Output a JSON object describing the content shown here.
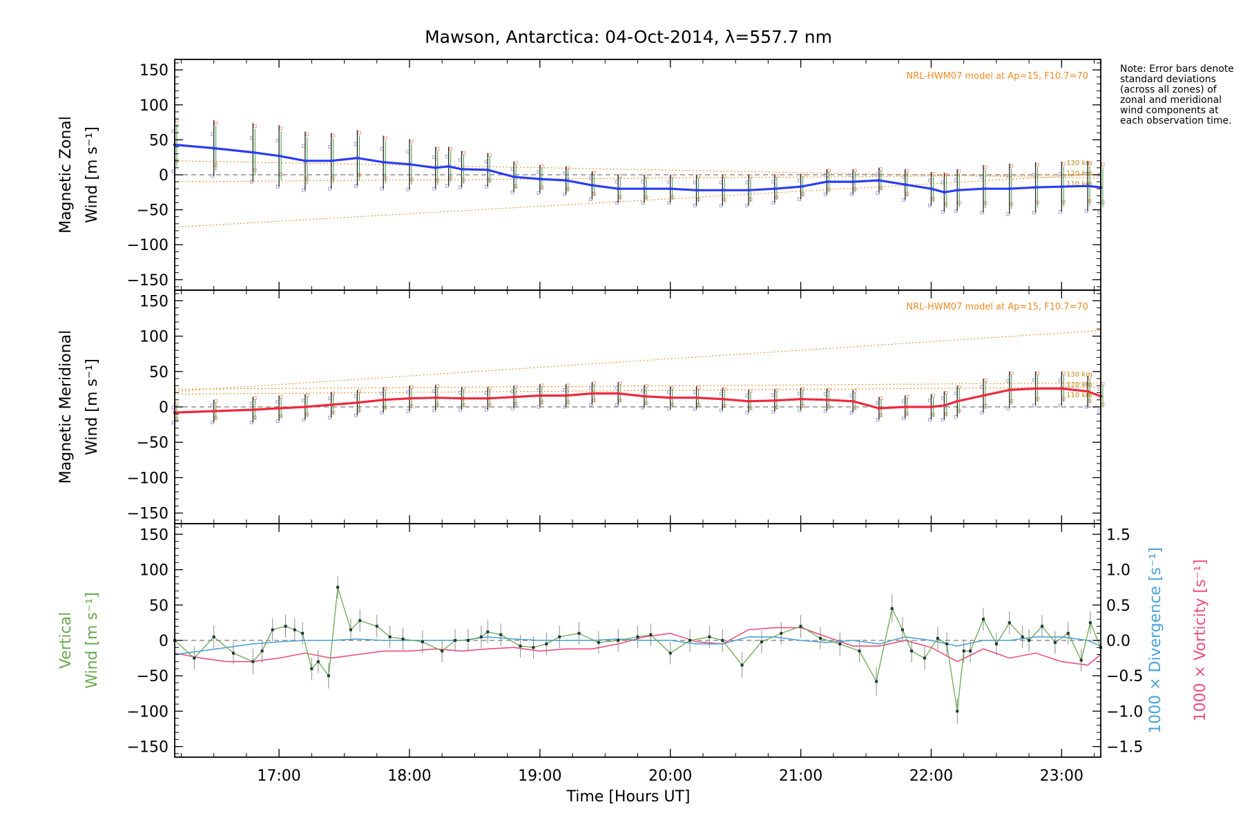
{
  "chart_data": {
    "title": "Mawson, Antarctica: 04-Oct-2014, λ=557.7 nm",
    "xlabel": "Time [Hours UT]",
    "x_range": [
      "16:12",
      "23:18"
    ],
    "x_ticks": [
      "17:00",
      "18:00",
      "19:00",
      "20:00",
      "21:00",
      "22:00",
      "23:00"
    ],
    "x_tick_hours": [
      17,
      18,
      19,
      20,
      21,
      22,
      23
    ],
    "x_minor_step_hours": 0.25,
    "note": "Note: Error bars denote standard deviations (across all zones) of zonal and meridional wind components at each observation time.",
    "colors": {
      "zonal": "#2a3cf5",
      "meridional": "#f0283c",
      "vertical": "#6aa84f",
      "divergence": "#4aa3d8",
      "vorticity": "#ec4d7e",
      "model": "#f08a24",
      "error_bar": "#222222",
      "zone_points": "#a0a0d8",
      "zone_points_warm": "#f2a090"
    },
    "panels": [
      {
        "id": "zonal",
        "type": "line",
        "ylabel_line1": "Magnetic Zonal",
        "ylabel_line2": "Wind [m s⁻¹]",
        "ylim": [
          -165,
          165
        ],
        "yticks": [
          "150",
          "100",
          "50",
          "0",
          "−50",
          "−100",
          "−150"
        ],
        "ytick_values": [
          150,
          100,
          50,
          0,
          -50,
          -100,
          -150
        ],
        "model_label": "NRL-HWM07 model at Ap=15, F10.7=70",
        "model_altitude_labels": [
          "130 km",
          "120 km",
          "110 km"
        ],
        "model_lines": [
          {
            "x": [
              16.2,
              23.3
            ],
            "y": [
              -75,
              1
            ]
          },
          {
            "x": [
              16.2,
              23.3
            ],
            "y": [
              20,
              -5
            ]
          },
          {
            "x": [
              16.2,
              23.3
            ],
            "y": [
              -10,
              0
            ]
          }
        ],
        "series": {
          "x": [
            16.2,
            16.5,
            16.8,
            17.0,
            17.2,
            17.4,
            17.6,
            17.8,
            18.0,
            18.2,
            18.3,
            18.4,
            18.6,
            18.8,
            19.0,
            19.2,
            19.4,
            19.6,
            19.8,
            20.0,
            20.2,
            20.4,
            20.6,
            20.8,
            21.0,
            21.2,
            21.4,
            21.6,
            21.8,
            22.0,
            22.1,
            22.2,
            22.4,
            22.6,
            22.8,
            23.0,
            23.2,
            23.3
          ],
          "y": [
            43,
            38,
            32,
            27,
            20,
            20,
            24,
            18,
            15,
            10,
            12,
            8,
            7,
            -3,
            -6,
            -8,
            -15,
            -20,
            -20,
            -20,
            -22,
            -22,
            -22,
            -20,
            -17,
            -10,
            -10,
            -8,
            -14,
            -20,
            -25,
            -22,
            -20,
            -20,
            -18,
            -17,
            -16,
            -18
          ],
          "err": [
            38,
            40,
            42,
            44,
            42,
            40,
            40,
            38,
            36,
            30,
            28,
            26,
            24,
            22,
            20,
            20,
            20,
            20,
            20,
            20,
            22,
            22,
            22,
            20,
            18,
            18,
            18,
            18,
            22,
            24,
            28,
            30,
            34,
            36,
            36,
            36,
            36,
            36
          ]
        }
      },
      {
        "id": "meridional",
        "type": "line",
        "ylabel_line1": "Magnetic Meridional",
        "ylabel_line2": "Wind [m s⁻¹]",
        "ylim": [
          -165,
          165
        ],
        "yticks": [
          "150",
          "100",
          "50",
          "0",
          "−50",
          "−100",
          "−150"
        ],
        "ytick_values": [
          150,
          100,
          50,
          0,
          -50,
          -100,
          -150
        ],
        "model_label": "NRL-HWM07 model at Ap=15, F10.7=70",
        "model_altitude_labels": [
          "130 km",
          "120 km",
          "110 km"
        ],
        "model_lines": [
          {
            "x": [
              16.2,
              23.3
            ],
            "y": [
              22,
              108
            ]
          },
          {
            "x": [
              16.2,
              23.3
            ],
            "y": [
              25,
              34
            ]
          },
          {
            "x": [
              16.2,
              23.3
            ],
            "y": [
              18,
              28
            ]
          }
        ],
        "series": {
          "x": [
            16.2,
            16.5,
            16.8,
            17.0,
            17.2,
            17.4,
            17.6,
            17.8,
            18.0,
            18.2,
            18.4,
            18.6,
            18.8,
            19.0,
            19.2,
            19.4,
            19.6,
            19.8,
            20.0,
            20.2,
            20.4,
            20.6,
            20.8,
            21.0,
            21.2,
            21.4,
            21.6,
            21.8,
            22.0,
            22.1,
            22.2,
            22.4,
            22.6,
            22.8,
            23.0,
            23.2,
            23.3
          ],
          "y": [
            -8,
            -6,
            -4,
            -2,
            0,
            3,
            6,
            10,
            12,
            13,
            12,
            12,
            14,
            16,
            16,
            19,
            19,
            15,
            13,
            13,
            11,
            8,
            9,
            11,
            10,
            8,
            -2,
            0,
            0,
            2,
            8,
            16,
            24,
            26,
            26,
            22,
            15
          ],
          "err": [
            14,
            16,
            18,
            18,
            18,
            18,
            18,
            18,
            18,
            18,
            16,
            16,
            16,
            16,
            16,
            16,
            16,
            16,
            16,
            16,
            16,
            16,
            16,
            16,
            16,
            16,
            16,
            16,
            18,
            20,
            22,
            24,
            26,
            24,
            24,
            22,
            20
          ]
        }
      },
      {
        "id": "vertical",
        "type": "line",
        "ylabel_line1": "Vertical",
        "ylabel_line2": "Wind [m s⁻¹]",
        "ylim": [
          -165,
          165
        ],
        "yticks": [
          "150",
          "100",
          "50",
          "0",
          "−50",
          "−100",
          "−150"
        ],
        "ytick_values": [
          150,
          100,
          50,
          0,
          -50,
          -100,
          -150
        ],
        "right_axis": {
          "ylabel_divergence": "1000 × Divergence [s⁻¹]",
          "ylabel_vorticity": "1000 × Vorticity [s⁻¹]",
          "ylim": [
            -1.65,
            1.65
          ],
          "yticks": [
            "1.5",
            "1.0",
            "0.5",
            "0.0",
            "−0.5",
            "−1.0",
            "−1.5"
          ],
          "ytick_values": [
            1.5,
            1.0,
            0.5,
            0.0,
            -0.5,
            -1.0,
            -1.5
          ]
        },
        "series": [
          {
            "name": "vertical",
            "x": [
              16.2,
              16.35,
              16.5,
              16.65,
              16.8,
              16.87,
              16.95,
              17.05,
              17.12,
              17.18,
              17.25,
              17.3,
              17.38,
              17.45,
              17.55,
              17.62,
              17.75,
              17.85,
              17.95,
              18.1,
              18.25,
              18.35,
              18.45,
              18.55,
              18.6,
              18.7,
              18.85,
              18.95,
              19.05,
              19.15,
              19.3,
              19.45,
              19.6,
              19.75,
              19.85,
              20.0,
              20.15,
              20.3,
              20.4,
              20.55,
              20.7,
              20.85,
              21.0,
              21.15,
              21.3,
              21.45,
              21.58,
              21.7,
              21.78,
              21.85,
              21.95,
              22.05,
              22.12,
              22.2,
              22.25,
              22.3,
              22.4,
              22.5,
              22.6,
              22.7,
              22.75,
              22.85,
              22.95,
              23.05,
              23.15,
              23.22,
              23.3
            ],
            "y": [
              0,
              -25,
              5,
              -18,
              -30,
              -15,
              15,
              20,
              15,
              10,
              -40,
              -30,
              -50,
              75,
              15,
              28,
              20,
              5,
              2,
              -2,
              -15,
              0,
              0,
              5,
              12,
              8,
              -8,
              -10,
              -5,
              5,
              10,
              -3,
              0,
              5,
              8,
              -18,
              0,
              5,
              0,
              -35,
              -2,
              10,
              20,
              3,
              -5,
              -15,
              -58,
              45,
              15,
              -15,
              -25,
              3,
              -5,
              -100,
              -15,
              -15,
              30,
              -5,
              25,
              5,
              0,
              20,
              -3,
              10,
              -28,
              25,
              -10
            ],
            "err": [
              18,
              16,
              16,
              16,
              18,
              16,
              16,
              16,
              16,
              16,
              16,
              16,
              18,
              16,
              16,
              16,
              16,
              16,
              16,
              16,
              16,
              16,
              16,
              16,
              16,
              16,
              16,
              16,
              16,
              16,
              16,
              16,
              16,
              16,
              16,
              16,
              16,
              16,
              16,
              18,
              16,
              16,
              16,
              16,
              16,
              16,
              20,
              20,
              18,
              16,
              16,
              16,
              16,
              18,
              16,
              16,
              16,
              16,
              16,
              16,
              16,
              16,
              16,
              16,
              16,
              16,
              16
            ]
          },
          {
            "name": "divergence",
            "x": [
              16.2,
              16.4,
              16.6,
              16.8,
              17.0,
              17.2,
              17.4,
              17.6,
              17.8,
              18.0,
              18.2,
              18.4,
              18.6,
              18.8,
              19.0,
              19.2,
              19.4,
              19.6,
              19.8,
              20.0,
              20.2,
              20.4,
              20.6,
              20.8,
              21.0,
              21.2,
              21.4,
              21.6,
              21.8,
              22.0,
              22.2,
              22.4,
              22.6,
              22.8,
              23.0,
              23.2,
              23.3
            ],
            "y": [
              -0.2,
              -0.15,
              -0.1,
              -0.05,
              -0.02,
              0.0,
              0.0,
              0.02,
              0.0,
              0.0,
              0.0,
              0.0,
              0.05,
              0.02,
              0.0,
              0.0,
              0.0,
              0.02,
              0.0,
              0.0,
              -0.05,
              -0.05,
              0.05,
              0.05,
              0.0,
              -0.03,
              0.0,
              -0.05,
              0.05,
              0.0,
              -0.08,
              0.0,
              0.0,
              0.05,
              0.05,
              0.0,
              -0.08
            ]
          },
          {
            "name": "vorticity",
            "x": [
              16.2,
              16.4,
              16.6,
              16.8,
              17.0,
              17.2,
              17.4,
              17.6,
              17.8,
              18.0,
              18.2,
              18.4,
              18.6,
              18.8,
              19.0,
              19.2,
              19.4,
              19.6,
              19.8,
              20.0,
              20.2,
              20.4,
              20.6,
              20.8,
              21.0,
              21.2,
              21.4,
              21.6,
              21.8,
              22.0,
              22.2,
              22.4,
              22.6,
              22.8,
              23.0,
              23.2,
              23.3
            ],
            "y": [
              -0.18,
              -0.25,
              -0.3,
              -0.3,
              -0.25,
              -0.18,
              -0.25,
              -0.2,
              -0.15,
              -0.15,
              -0.12,
              -0.15,
              -0.12,
              -0.1,
              -0.15,
              -0.12,
              -0.12,
              -0.05,
              0.05,
              0.1,
              -0.02,
              -0.05,
              0.15,
              0.18,
              0.18,
              0.05,
              -0.08,
              -0.08,
              0.0,
              -0.1,
              -0.3,
              -0.12,
              -0.25,
              -0.18,
              -0.3,
              -0.35,
              -0.2
            ]
          }
        ]
      }
    ]
  }
}
